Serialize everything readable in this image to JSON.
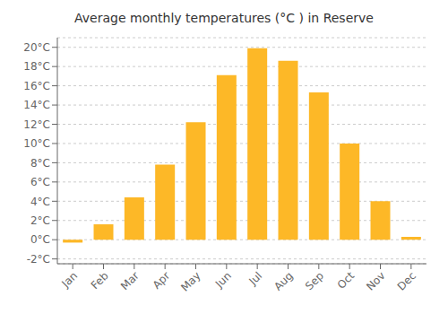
{
  "chart_data": {
    "type": "bar",
    "title": "Average monthly temperatures (°C ) in Reserve",
    "categories": [
      "Jan",
      "Feb",
      "Mar",
      "Apr",
      "May",
      "Jun",
      "Jul",
      "Aug",
      "Sep",
      "Oct",
      "Nov",
      "Dec"
    ],
    "values": [
      -0.3,
      1.6,
      4.4,
      7.8,
      12.2,
      17.1,
      19.9,
      18.6,
      15.3,
      10.0,
      4.0,
      0.3
    ],
    "color": "#FDB827",
    "ylim": [
      -2.5,
      21
    ],
    "yticks": [
      {
        "value": -2,
        "label": "-2°C"
      },
      {
        "value": 0,
        "label": "0°C"
      },
      {
        "value": 2,
        "label": "2°C"
      },
      {
        "value": 4,
        "label": "4°C"
      },
      {
        "value": 6,
        "label": "6°C"
      },
      {
        "value": 8,
        "label": "8°C"
      },
      {
        "value": 10,
        "label": "10°C"
      },
      {
        "value": 12,
        "label": "12°C"
      },
      {
        "value": 14,
        "label": "14°C"
      },
      {
        "value": 16,
        "label": "16°C"
      },
      {
        "value": 18,
        "label": "18°C"
      },
      {
        "value": 20,
        "label": "20°C"
      }
    ],
    "grid": true
  }
}
